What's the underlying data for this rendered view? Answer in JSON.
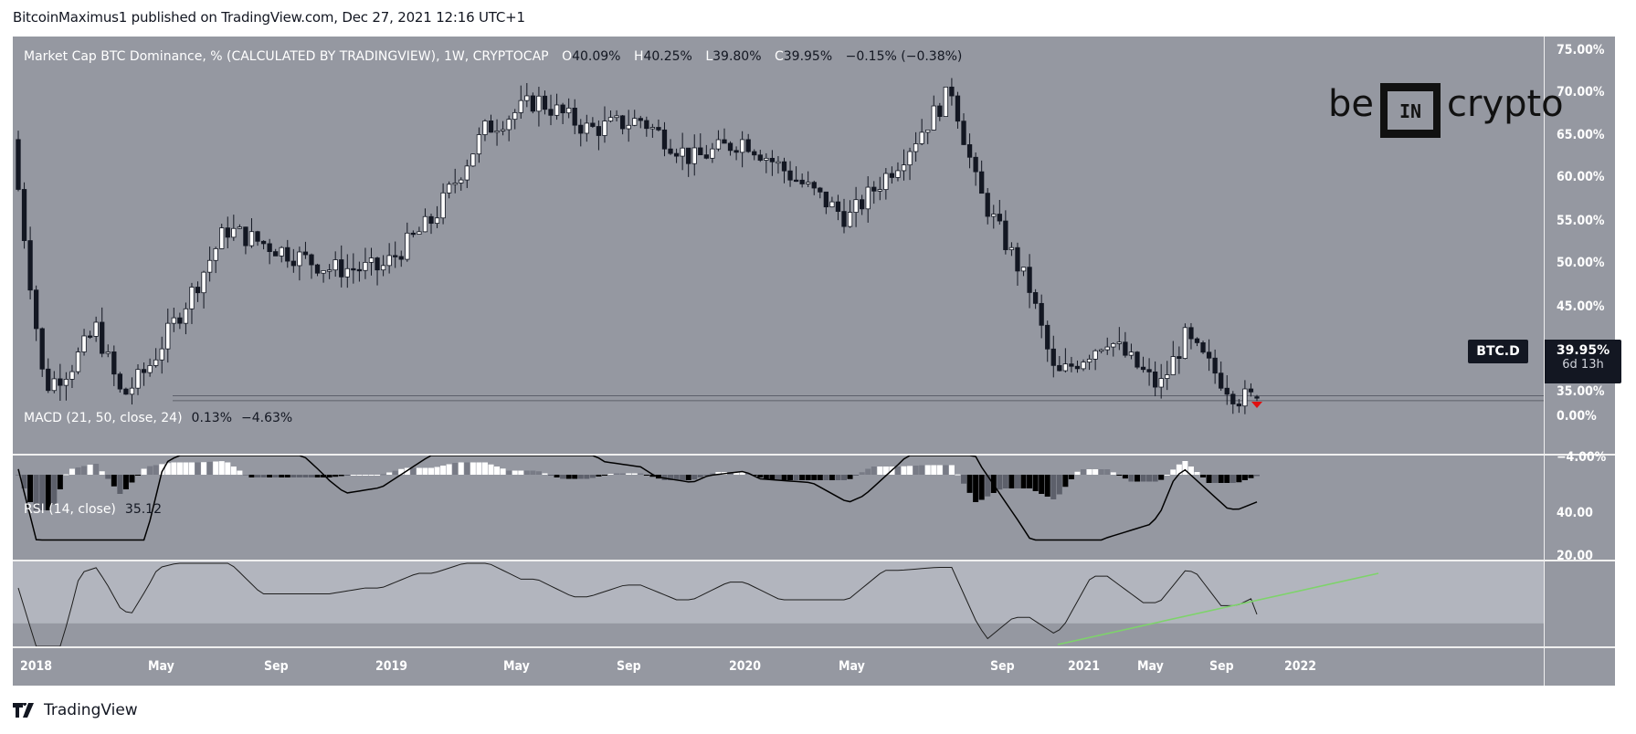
{
  "header": {
    "published_line": "BitcoinMaximus1 published on TradingView.com, Dec 27, 2021 12:16 UTC+1"
  },
  "legend": {
    "title": "Market Cap BTC Dominance, % (CALCULATED BY TRADINGVIEW), 1W, CRYPTOCAP",
    "o_key": "O",
    "o_val": "40.09%",
    "h_key": "H",
    "h_val": "40.25%",
    "l_key": "L",
    "l_val": "39.80%",
    "c_key": "C",
    "c_val": "39.95%",
    "change": "−0.15% (−0.38%)"
  },
  "watermark": {
    "be": "be",
    "in": "IN",
    "crypto": "crypto"
  },
  "price_scale": [
    "75.00%",
    "70.00%",
    "65.00%",
    "60.00%",
    "55.00%",
    "50.00%",
    "45.00%",
    "35.00%"
  ],
  "last_price_tag": {
    "symbol": "BTC.D",
    "price": "39.95%",
    "countdown": "6d 13h"
  },
  "macd": {
    "label": "MACD (21, 50, close, 24)",
    "value1": "0.13%",
    "value2": "−4.63%",
    "scale": [
      "0.00%",
      "−4.00%"
    ]
  },
  "rsi": {
    "label": "RSI (14, close)",
    "value": "35.12",
    "scale": [
      "40.00",
      "20.00"
    ]
  },
  "time_axis": [
    "2018",
    "May",
    "Sep",
    "2019",
    "May",
    "Sep",
    "2020",
    "May",
    "Sep",
    "2021",
    "May",
    "Sep",
    "2022"
  ],
  "footer": {
    "brand": "TradingView"
  },
  "colors": {
    "background": "#9598a1",
    "candle_up": "#ffffff",
    "candle_down": "#131722",
    "macd_line": "#000000",
    "rsi_line": "#1e1e1e",
    "trendline": "#7ed36b",
    "rsi_band": "#b2b5be",
    "signal_arrow": "#e01010"
  },
  "chart_data": [
    {
      "type": "candlestick",
      "title": "Market Cap BTC Dominance, % (CALCULATED BY TRADINGVIEW), 1W, CRYPTOCAP",
      "ylabel": "%",
      "ylim": [
        35,
        75
      ],
      "x_ticks": [
        "2018",
        "May",
        "Sep",
        "2019",
        "May",
        "Sep",
        "2020",
        "May",
        "Sep",
        "2021",
        "May",
        "Sep",
        "2022"
      ],
      "support_zone": [
        39.7,
        40.2
      ],
      "last": {
        "open": 40.09,
        "high": 40.25,
        "low": 39.8,
        "close": 39.95,
        "change": -0.15,
        "change_pct": -0.38
      },
      "approx_closes": [
        {
          "x": "2018-01",
          "v": 61
        },
        {
          "x": "2018-02",
          "v": 41
        },
        {
          "x": "2018-03",
          "v": 43
        },
        {
          "x": "2018-04",
          "v": 47
        },
        {
          "x": "2018-05",
          "v": 40
        },
        {
          "x": "2018-06",
          "v": 43
        },
        {
          "x": "2018-08",
          "v": 52
        },
        {
          "x": "2018-09",
          "v": 57
        },
        {
          "x": "2018-11",
          "v": 55
        },
        {
          "x": "2019-01",
          "v": 53
        },
        {
          "x": "2019-03",
          "v": 53
        },
        {
          "x": "2019-05",
          "v": 58
        },
        {
          "x": "2019-07",
          "v": 67
        },
        {
          "x": "2019-09",
          "v": 70
        },
        {
          "x": "2019-11",
          "v": 67
        },
        {
          "x": "2020-01",
          "v": 68
        },
        {
          "x": "2020-03",
          "v": 64
        },
        {
          "x": "2020-05",
          "v": 66
        },
        {
          "x": "2020-07",
          "v": 62
        },
        {
          "x": "2020-09",
          "v": 58
        },
        {
          "x": "2020-11",
          "v": 64
        },
        {
          "x": "2021-01",
          "v": 71
        },
        {
          "x": "2021-02",
          "v": 61
        },
        {
          "x": "2021-04",
          "v": 51
        },
        {
          "x": "2021-05",
          "v": 42
        },
        {
          "x": "2021-07",
          "v": 46
        },
        {
          "x": "2021-09",
          "v": 41
        },
        {
          "x": "2021-10",
          "v": 46
        },
        {
          "x": "2021-12",
          "v": 40
        }
      ]
    },
    {
      "type": "bar+line",
      "title": "MACD (21, 50, close, 24)",
      "values_shown": {
        "histogram": 0.13,
        "macd": -4.63
      },
      "ylabel": "%",
      "y_ticks": [
        0,
        -4
      ]
    },
    {
      "type": "line",
      "title": "RSI (14, close)",
      "value_shown": 35.12,
      "y_ticks": [
        40,
        20
      ],
      "annotations": [
        "green ascending trendline from May 2021 RSI low (~17) rising through Sep 2021 low, broken in Dec 2021"
      ]
    }
  ]
}
